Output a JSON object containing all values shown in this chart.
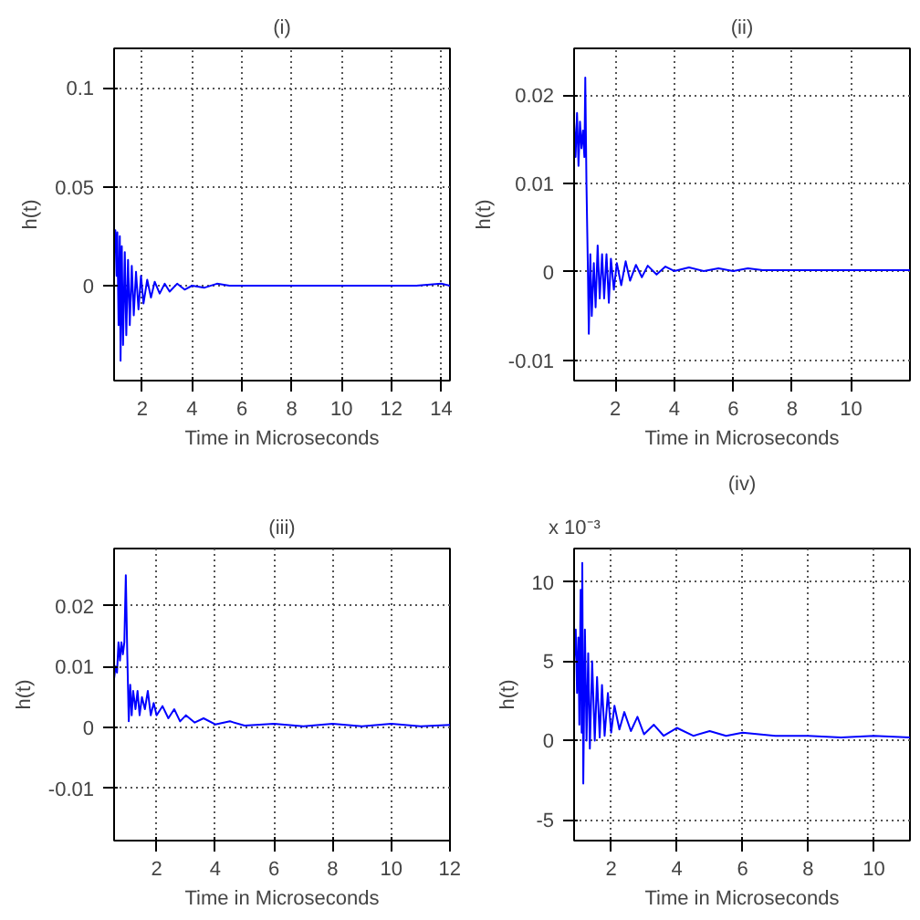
{
  "chart_data": [
    {
      "type": "line",
      "title": "(i)",
      "xlabel": "Time in Microseconds",
      "ylabel": "h(t)",
      "xlim": [
        0.87,
        14.35
      ],
      "ylim": [
        -0.048,
        0.12
      ],
      "xticks": [
        2,
        4,
        6,
        8,
        10,
        12,
        14
      ],
      "yticks": [
        0,
        0.05,
        0.1
      ],
      "grid": true,
      "x": [
        0.87,
        0.92,
        0.97,
        1.0,
        1.05,
        1.1,
        1.13,
        1.18,
        1.23,
        1.3,
        1.36,
        1.43,
        1.5,
        1.58,
        1.66,
        1.75,
        1.85,
        1.95,
        2.05,
        2.2,
        2.35,
        2.5,
        2.7,
        2.9,
        3.1,
        3.4,
        3.7,
        4.0,
        4.5,
        5.0,
        5.5,
        6,
        7,
        8,
        9,
        10,
        11,
        12,
        13,
        14,
        14.35
      ],
      "series": [
        {
          "color": "#0000ff",
          "values": [
            0.02,
            0.028,
            0.005,
            0.027,
            -0.02,
            0.025,
            -0.038,
            0.02,
            -0.03,
            0.017,
            -0.025,
            0.013,
            -0.02,
            0.01,
            -0.015,
            0.007,
            -0.012,
            0.005,
            -0.009,
            0.003,
            -0.006,
            0.002,
            -0.004,
            0.001,
            -0.003,
            0.001,
            -0.002,
            0,
            -0.001,
            0.001,
            0,
            0,
            0,
            0,
            0,
            0,
            0,
            0,
            0,
            0.001,
            0
          ]
        }
      ]
    },
    {
      "type": "line",
      "title": "(ii)",
      "xlabel": "Time in Microseconds",
      "ylabel": "h(t)",
      "xlim": [
        0.6,
        12
      ],
      "ylim": [
        -0.0123,
        0.0253
      ],
      "xticks": [
        2,
        4,
        6,
        8,
        10
      ],
      "yticks": [
        -0.01,
        0,
        0.01,
        0.02
      ],
      "grid": true,
      "x": [
        0.6,
        0.65,
        0.7,
        0.75,
        0.8,
        0.85,
        0.9,
        0.95,
        0.98,
        1.02,
        1.07,
        1.1,
        1.15,
        1.2,
        1.27,
        1.33,
        1.4,
        1.47,
        1.55,
        1.62,
        1.7,
        1.78,
        1.85,
        1.95,
        2.05,
        2.2,
        2.35,
        2.5,
        2.7,
        2.9,
        3.1,
        3.4,
        3.7,
        4.0,
        4.5,
        5,
        5.5,
        6,
        6.5,
        7,
        8,
        9,
        10,
        11,
        12
      ],
      "series": [
        {
          "color": "#0000ff",
          "values": [
            0.017,
            0.013,
            0.018,
            0.012,
            0.017,
            0.014,
            0.016,
            0.013,
            0.022,
            0.01,
            0.0,
            -0.007,
            0.002,
            -0.005,
            0.001,
            -0.004,
            0.003,
            -0.003,
            0.002,
            -0.003,
            0.002,
            -0.0035,
            0.0015,
            -0.002,
            0.001,
            -0.0015,
            0.0012,
            -0.001,
            0.0008,
            -0.0006,
            0.0007,
            -0.0003,
            0.0006,
            0.0001,
            0.0005,
            0.0001,
            0.0004,
            0.0001,
            0.0004,
            0.0002,
            0.0002,
            0.0002,
            0.0002,
            0.0002,
            0.0002
          ]
        }
      ]
    },
    {
      "type": "line",
      "title": "(iii)",
      "xlabel": "Time in Microseconds",
      "ylabel": "h(t)",
      "xlim": [
        0.55,
        12
      ],
      "ylim": [
        -0.0186,
        0.0294
      ],
      "xticks": [
        2,
        4,
        6,
        8,
        10,
        12
      ],
      "yticks": [
        -0.01,
        0,
        0.01,
        0.02
      ],
      "grid": true,
      "x": [
        0.55,
        0.6,
        0.65,
        0.7,
        0.75,
        0.8,
        0.85,
        0.9,
        0.95,
        1.0,
        1.05,
        1.1,
        1.15,
        1.2,
        1.28,
        1.35,
        1.42,
        1.5,
        1.6,
        1.7,
        1.8,
        1.9,
        2.0,
        2.2,
        2.4,
        2.6,
        2.8,
        3.0,
        3.3,
        3.6,
        4.0,
        4.5,
        5,
        6,
        7,
        8,
        9,
        10,
        11,
        12
      ],
      "series": [
        {
          "color": "#0000ff",
          "values": [
            0.008,
            0.01,
            0.009,
            0.014,
            0.011,
            0.014,
            0.012,
            0.014,
            0.025,
            0.012,
            0.001,
            0.007,
            0.002,
            0.006,
            0.003,
            0.006,
            0.002,
            0.005,
            0.003,
            0.006,
            0.002,
            0.004,
            0.002,
            0.0035,
            0.0015,
            0.003,
            0.001,
            0.002,
            0.0008,
            0.0015,
            0.0005,
            0.001,
            0.0003,
            0.0006,
            0.0002,
            0.0006,
            0.0002,
            0.0006,
            0.0002,
            0.0004
          ]
        }
      ]
    },
    {
      "type": "line",
      "title": "(iv)",
      "xlabel": "Time in Microseconds",
      "ylabel": "h(t)",
      "annotations": [
        "x 10⁻³"
      ],
      "xlim": [
        0.87,
        11.1
      ],
      "ylim": [
        -6.3,
        12.1
      ],
      "xticks": [
        2,
        4,
        6,
        8,
        10
      ],
      "yticks": [
        -5,
        0,
        5,
        10
      ],
      "grid": true,
      "x": [
        0.87,
        0.92,
        0.96,
        1.0,
        1.03,
        1.07,
        1.1,
        1.12,
        1.15,
        1.2,
        1.25,
        1.3,
        1.35,
        1.42,
        1.5,
        1.57,
        1.65,
        1.72,
        1.8,
        1.9,
        2.0,
        2.1,
        2.25,
        2.4,
        2.6,
        2.8,
        3.0,
        3.3,
        3.6,
        4.0,
        4.5,
        5.0,
        5.5,
        6.0,
        7,
        8,
        9,
        10,
        11.1
      ],
      "series": [
        {
          "color": "#0000ff",
          "values": [
            5,
            7,
            3,
            6.5,
            1,
            9.5,
            0.5,
            11.2,
            -2.7,
            7,
            0,
            5.5,
            -0.5,
            5,
            0,
            4,
            0.2,
            3.5,
            0.3,
            3,
            0.5,
            2.2,
            0.7,
            1.8,
            0.6,
            1.5,
            0.4,
            1,
            0.3,
            0.8,
            0.3,
            0.6,
            0.3,
            0.5,
            0.3,
            0.3,
            0.2,
            0.3,
            0.2
          ]
        }
      ]
    }
  ]
}
